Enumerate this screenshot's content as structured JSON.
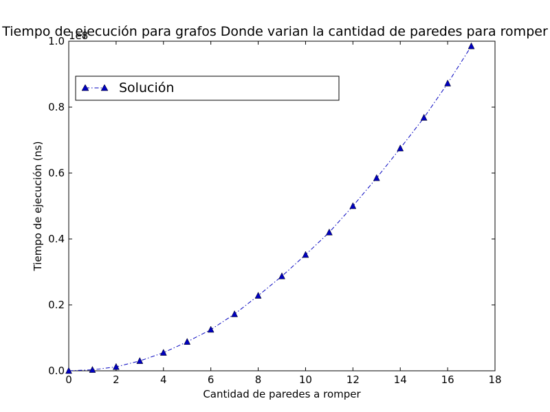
{
  "chart_data": {
    "type": "line",
    "title": "Tiempo de ejecución para grafos Donde varian la cantidad de paredes para romper",
    "xlabel": "Cantidad de paredes a romper",
    "ylabel": "Tiempo de ejecución (ns)",
    "y_offset_label": "1e8",
    "xlim": [
      0,
      18
    ],
    "ylim": [
      0,
      1.0
    ],
    "x_ticks": [
      "0",
      "2",
      "4",
      "6",
      "8",
      "10",
      "12",
      "14",
      "16",
      "18"
    ],
    "y_ticks": [
      "0.0",
      "0.2",
      "0.4",
      "0.6",
      "0.8",
      "1.0"
    ],
    "grid": false,
    "legend_position": "upper-left",
    "series": [
      {
        "name": "Solución",
        "color": "#0000bf",
        "marker": "triangle",
        "line_style": "dash-dot",
        "x": [
          0,
          1,
          2,
          3,
          4,
          5,
          6,
          7,
          8,
          9,
          10,
          11,
          12,
          13,
          14,
          15,
          16,
          17
        ],
        "y": [
          0.0,
          0.003,
          0.012,
          0.03,
          0.055,
          0.088,
          0.125,
          0.172,
          0.228,
          0.287,
          0.352,
          0.42,
          0.5,
          0.585,
          0.675,
          0.768,
          0.872,
          0.985
        ]
      }
    ]
  }
}
